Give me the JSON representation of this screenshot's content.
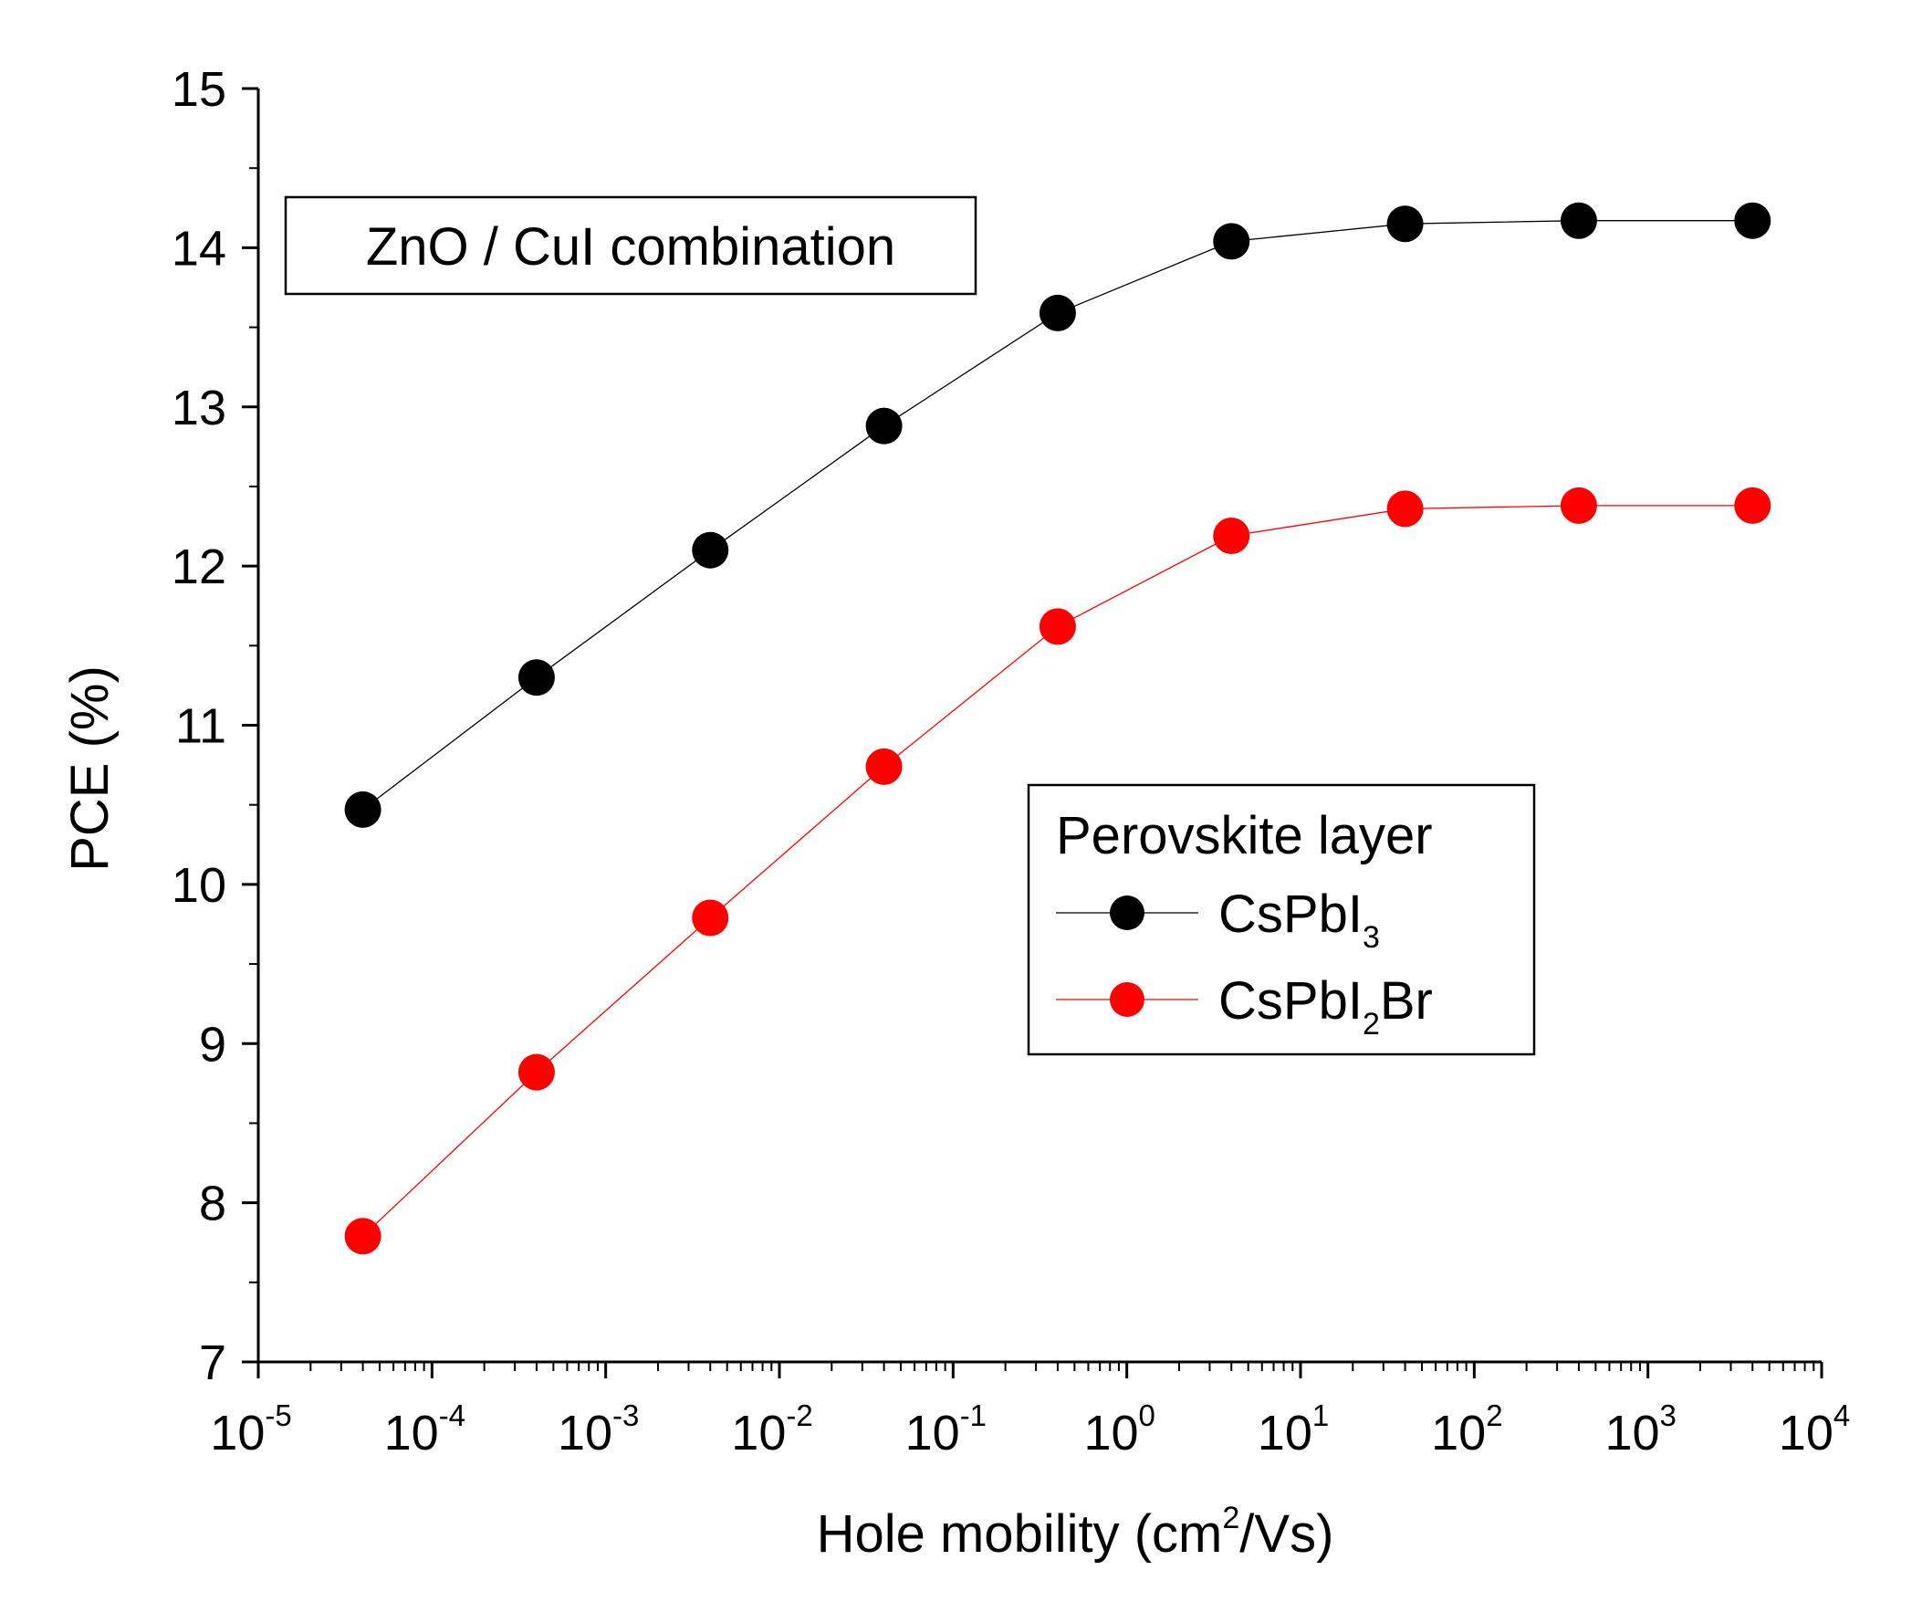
{
  "chart_data": {
    "type": "line",
    "title": "",
    "xlabel": "Hole mobility (cm",
    "xlabel_sup": "2",
    "xlabel_end": "/Vs)",
    "ylabel": "PCE (%)",
    "xscale": "log",
    "xlim": [
      1e-05,
      10000
    ],
    "ylim": [
      7,
      15
    ],
    "x_ticks": [
      {
        "base": "10",
        "exp": "-5"
      },
      {
        "base": "10",
        "exp": "-4"
      },
      {
        "base": "10",
        "exp": "-3"
      },
      {
        "base": "10",
        "exp": "-2"
      },
      {
        "base": "10",
        "exp": "-1"
      },
      {
        "base": "10",
        "exp": "0"
      },
      {
        "base": "10",
        "exp": "1"
      },
      {
        "base": "10",
        "exp": "2"
      },
      {
        "base": "10",
        "exp": "3"
      },
      {
        "base": "10",
        "exp": "4"
      }
    ],
    "y_ticks": [
      "7",
      "8",
      "9",
      "10",
      "11",
      "12",
      "13",
      "14",
      "15"
    ],
    "x": [
      4e-05,
      0.0004,
      0.004,
      0.04,
      0.4,
      4,
      40,
      400,
      4000
    ],
    "series": [
      {
        "name": "CsPbI3",
        "color": "#000000",
        "values": [
          10.47,
          11.3,
          12.1,
          12.88,
          13.59,
          14.04,
          14.15,
          14.17,
          14.17
        ]
      },
      {
        "name": "CsPbI2Br",
        "color": "#ff0000",
        "values": [
          7.79,
          8.82,
          9.79,
          10.74,
          11.62,
          12.19,
          12.36,
          12.38,
          12.38
        ]
      }
    ],
    "annotation": "ZnO / CuI combination",
    "legend": {
      "title": "Perovskite layer",
      "placement": "center-right",
      "entries": [
        {
          "main": "CsPbI",
          "sub": "3",
          "end": ""
        },
        {
          "main": "CsPbI",
          "sub": "2",
          "end": "Br"
        }
      ]
    }
  }
}
